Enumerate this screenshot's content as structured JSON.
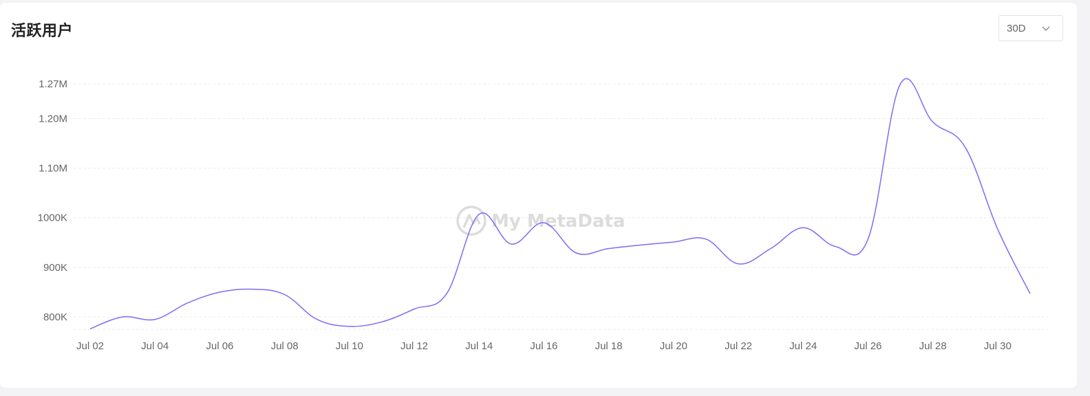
{
  "header": {
    "title": "活跃用户"
  },
  "range_selector": {
    "value": "30D",
    "icon": "chevron-down-icon"
  },
  "watermark": {
    "text": "My MetaData",
    "icon": "metadata-logo-icon"
  },
  "colors": {
    "line": "#7b6cf6",
    "grid": "#ececec",
    "axis_text": "#666666",
    "watermark": "#dcdcdc"
  },
  "chart_data": {
    "type": "line",
    "title": "活跃用户",
    "xlabel": "",
    "ylabel": "",
    "grid": true,
    "legend": "none",
    "ylim": [
      720000,
      1270000
    ],
    "yticks": [
      {
        "value": 800000,
        "label": "800K"
      },
      {
        "value": 900000,
        "label": "900K"
      },
      {
        "value": 1000000,
        "label": "1000K"
      },
      {
        "value": 1100000,
        "label": "1.10M"
      },
      {
        "value": 1200000,
        "label": "1.20M"
      },
      {
        "value": 1270000,
        "label": "1.27M"
      }
    ],
    "xtick_labels": [
      "Jul 02",
      "Jul 04",
      "Jul 06",
      "Jul 08",
      "Jul 10",
      "Jul 12",
      "Jul 14",
      "Jul 16",
      "Jul 18",
      "Jul 20",
      "Jul 22",
      "Jul 24",
      "Jul 26",
      "Jul 28",
      "Jul 30"
    ],
    "series": [
      {
        "name": "",
        "x": [
          "Jul 02",
          "Jul 03",
          "Jul 04",
          "Jul 05",
          "Jul 06",
          "Jul 07",
          "Jul 08",
          "Jul 09",
          "Jul 10",
          "Jul 11",
          "Jul 12",
          "Jul 13",
          "Jul 14",
          "Jul 15",
          "Jul 16",
          "Jul 17",
          "Jul 18",
          "Jul 19",
          "Jul 20",
          "Jul 21",
          "Jul 22",
          "Jul 23",
          "Jul 24",
          "Jul 25",
          "Jul 26",
          "Jul 27",
          "Jul 28",
          "Jul 29",
          "Jul 30",
          "Jul 31"
        ],
        "values": [
          776000,
          800000,
          795000,
          828000,
          850000,
          856000,
          845000,
          795000,
          781000,
          790000,
          816000,
          847000,
          1007000,
          947000,
          990000,
          929000,
          938000,
          945000,
          951000,
          957000,
          907000,
          938000,
          980000,
          942000,
          957000,
          1270000,
          1193000,
          1142000,
          977000,
          847000
        ]
      }
    ]
  }
}
